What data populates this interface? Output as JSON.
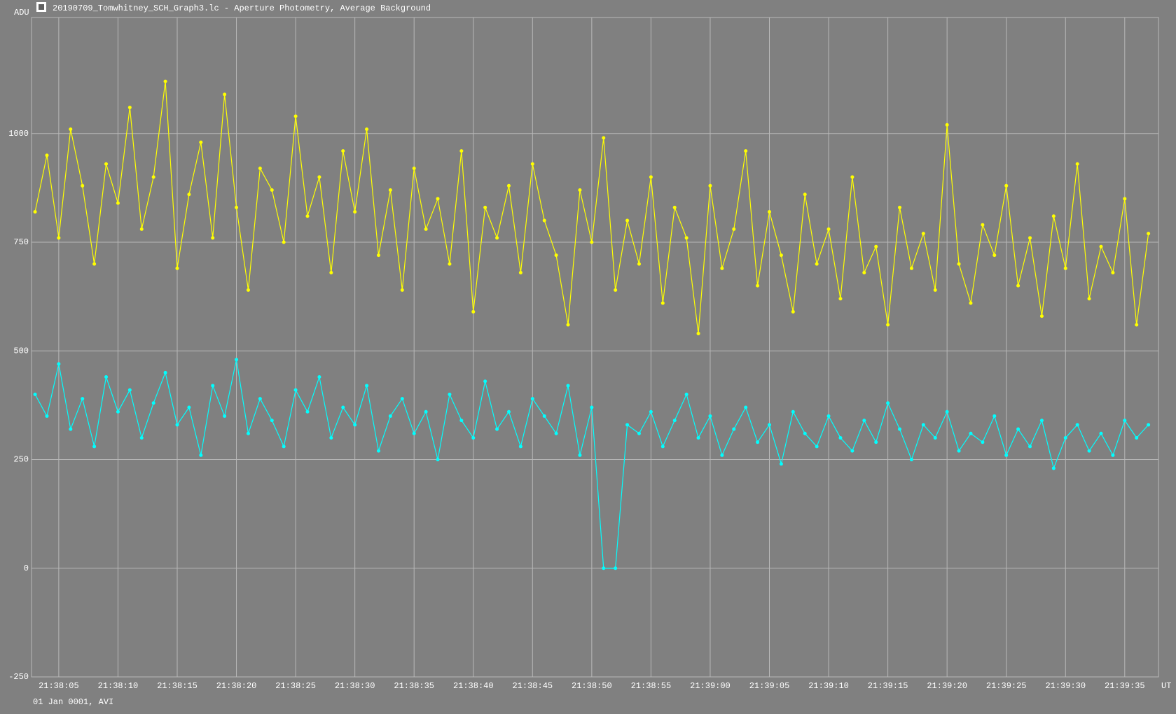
{
  "chart_data": {
    "type": "line",
    "title": "20190709_Tomwhitney_SCH_Graph3.lc - Aperture Photometry, Average Background",
    "y_label": "ADU",
    "x_label": "UT",
    "footnote": "01 Jan 0001, AVI",
    "grid": true,
    "xlim": [
      77882.7,
      77977.85
    ],
    "ylim": [
      -250,
      1267
    ],
    "yticks": [
      -250,
      0,
      250,
      500,
      750,
      1000
    ],
    "xticks": [
      {
        "value": 77885,
        "label": "21:38:05"
      },
      {
        "value": 77890,
        "label": "21:38:10"
      },
      {
        "value": 77895,
        "label": "21:38:15"
      },
      {
        "value": 77900,
        "label": "21:38:20"
      },
      {
        "value": 77905,
        "label": "21:38:25"
      },
      {
        "value": 77910,
        "label": "21:38:30"
      },
      {
        "value": 77915,
        "label": "21:38:35"
      },
      {
        "value": 77920,
        "label": "21:38:40"
      },
      {
        "value": 77925,
        "label": "21:38:45"
      },
      {
        "value": 77930,
        "label": "21:38:50"
      },
      {
        "value": 77935,
        "label": "21:38:55"
      },
      {
        "value": 77940,
        "label": "21:39:00"
      },
      {
        "value": 77945,
        "label": "21:39:05"
      },
      {
        "value": 77950,
        "label": "21:39:10"
      },
      {
        "value": 77955,
        "label": "21:39:15"
      },
      {
        "value": 77960,
        "label": "21:39:20"
      },
      {
        "value": 77965,
        "label": "21:39:25"
      },
      {
        "value": 77970,
        "label": "21:39:30"
      },
      {
        "value": 77975,
        "label": "21:39:35"
      }
    ],
    "x": [
      77883,
      77884,
      77885,
      77886,
      77887,
      77888,
      77889,
      77890,
      77891,
      77892,
      77893,
      77894,
      77895,
      77896,
      77897,
      77898,
      77899,
      77900,
      77901,
      77902,
      77903,
      77904,
      77905,
      77906,
      77907,
      77908,
      77909,
      77910,
      77911,
      77912,
      77913,
      77914,
      77915,
      77916,
      77917,
      77918,
      77919,
      77920,
      77921,
      77922,
      77923,
      77924,
      77925,
      77926,
      77927,
      77928,
      77929,
      77930,
      77931,
      77932,
      77933,
      77934,
      77935,
      77936,
      77937,
      77938,
      77939,
      77940,
      77941,
      77942,
      77943,
      77944,
      77945,
      77946,
      77947,
      77948,
      77949,
      77950,
      77951,
      77952,
      77953,
      77954,
      77955,
      77956,
      77957,
      77958,
      77959,
      77960,
      77961,
      77962,
      77963,
      77964,
      77965,
      77966,
      77967,
      77968,
      77969,
      77970,
      77971,
      77972,
      77973,
      77974,
      77975,
      77976,
      77977
    ],
    "series": [
      {
        "color": "#ffff00",
        "values": [
          820,
          950,
          760,
          1010,
          880,
          700,
          930,
          840,
          1060,
          780,
          900,
          1120,
          690,
          860,
          980,
          760,
          1090,
          830,
          640,
          920,
          870,
          750,
          1040,
          810,
          900,
          680,
          960,
          820,
          1010,
          720,
          870,
          640,
          920,
          780,
          850,
          700,
          960,
          590,
          830,
          760,
          880,
          680,
          930,
          800,
          720,
          560,
          870,
          750,
          990,
          640,
          800,
          700,
          900,
          610,
          830,
          760,
          540,
          880,
          690,
          780,
          960,
          650,
          820,
          720,
          590,
          860,
          700,
          780,
          620,
          900,
          680,
          740,
          560,
          830,
          690,
          770,
          640,
          1020,
          700,
          610,
          790,
          720,
          880,
          650,
          760,
          580,
          810,
          690,
          930,
          620,
          740,
          680,
          850,
          560,
          770
        ]
      },
      {
        "color": "#00ffff",
        "values": [
          400,
          350,
          470,
          320,
          390,
          280,
          440,
          360,
          410,
          300,
          380,
          450,
          330,
          370,
          260,
          420,
          350,
          480,
          310,
          390,
          340,
          280,
          410,
          360,
          440,
          300,
          370,
          330,
          420,
          270,
          350,
          390,
          310,
          360,
          250,
          400,
          340,
          300,
          430,
          320,
          360,
          280,
          390,
          350,
          310,
          420,
          260,
          370,
          0,
          0,
          330,
          310,
          360,
          280,
          340,
          400,
          300,
          350,
          260,
          320,
          370,
          290,
          330,
          240,
          360,
          310,
          280,
          350,
          300,
          270,
          340,
          290,
          380,
          320,
          250,
          330,
          300,
          360,
          270,
          310,
          290,
          350,
          260,
          320,
          280,
          340,
          230,
          300,
          330,
          270,
          310,
          260,
          340,
          300,
          330
        ]
      }
    ]
  }
}
